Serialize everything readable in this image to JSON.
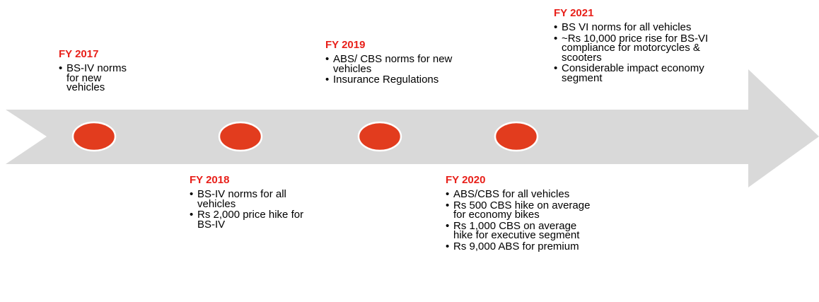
{
  "milestones": [
    {
      "year": "FY 2017",
      "bullets": [
        "BS-IV norms for new vehicles"
      ]
    },
    {
      "year": "FY 2018",
      "bullets": [
        "BS-IV norms for all vehicles",
        "Rs 2,000 price hike for BS-IV"
      ]
    },
    {
      "year": "FY 2019",
      "bullets": [
        "ABS/ CBS norms for new vehicles",
        "Insurance Regulations"
      ]
    },
    {
      "year": "FY 2020",
      "bullets": [
        "ABS/CBS for all vehicles",
        "Rs 500 CBS hike on average for economy bikes",
        "Rs 1,000 CBS on average hike for executive segment",
        "Rs 9,000 ABS for premium"
      ]
    },
    {
      "year": "FY 2021",
      "bullets": [
        "BS VI norms for all vehicles",
        "~Rs 10,000 price rise for BS-VI compliance for motorcycles & scooters",
        "Considerable impact economy segment"
      ]
    }
  ]
}
